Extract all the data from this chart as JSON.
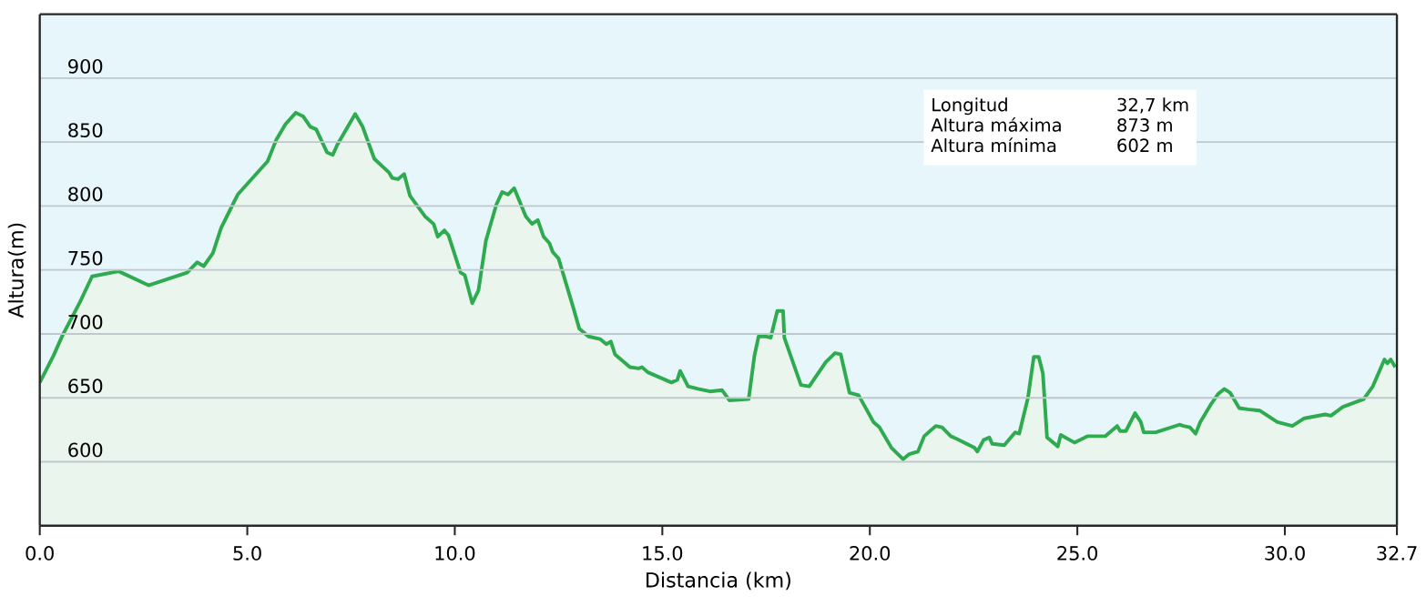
{
  "chart_data": {
    "type": "area",
    "xlabel": "Distancia  (km)",
    "ylabel": "Altura(m)",
    "x": [
      0,
      0.33,
      0.55,
      0.97,
      1.26,
      1.9,
      2.62,
      3.55,
      3.79,
      3.95,
      4.17,
      4.37,
      4.77,
      5.49,
      5.7,
      5.92,
      6.17,
      6.35,
      6.52,
      6.66,
      6.92,
      7.06,
      7.17,
      7.6,
      7.78,
      8.06,
      8.42,
      8.49,
      8.63,
      8.78,
      8.92,
      9.28,
      9.49,
      9.59,
      9.75,
      9.85,
      10.14,
      10.24,
      10.42,
      10.57,
      10.75,
      11.0,
      11.14,
      11.28,
      11.43,
      11.71,
      11.86,
      12.0,
      12.14,
      12.28,
      12.36,
      12.5,
      12.86,
      13.0,
      13.22,
      13.5,
      13.65,
      13.76,
      13.86,
      14.22,
      14.43,
      14.51,
      14.65,
      15.22,
      15.36,
      15.43,
      15.62,
      15.86,
      16.15,
      16.44,
      16.62,
      17.08,
      17.22,
      17.32,
      17.51,
      17.61,
      17.77,
      17.91,
      17.94,
      18.34,
      18.54,
      18.94,
      19.16,
      19.3,
      19.51,
      19.73,
      20.09,
      20.23,
      20.52,
      20.8,
      20.95,
      21.16,
      21.31,
      21.59,
      21.74,
      21.95,
      22.09,
      22.52,
      22.59,
      22.74,
      22.88,
      22.95,
      23.24,
      23.5,
      23.6,
      23.81,
      23.95,
      24.07,
      24.17,
      24.27,
      24.53,
      24.6,
      24.93,
      25.24,
      25.67,
      25.96,
      26.03,
      26.17,
      26.39,
      26.53,
      26.6,
      26.89,
      27.46,
      27.56,
      27.71,
      27.85,
      27.96,
      28.22,
      28.39,
      28.54,
      28.68,
      28.9,
      29.11,
      29.4,
      29.82,
      30.18,
      30.47,
      30.97,
      31.11,
      31.4,
      31.9,
      32.12,
      32.4,
      32.47,
      32.55,
      32.66
    ],
    "series": [
      {
        "color": "#2eaa4f",
        "values": [
          662,
          683,
          699,
          725,
          745,
          749,
          738,
          748,
          756,
          753,
          763,
          783,
          809,
          835,
          852,
          864,
          873,
          870,
          862,
          860,
          842,
          840,
          848,
          872,
          862,
          837,
          826,
          822,
          821,
          825,
          808,
          792,
          786,
          776,
          781,
          777,
          748,
          746,
          724,
          734,
          773,
          801,
          811,
          809,
          814,
          792,
          786,
          789,
          776,
          771,
          764,
          759,
          720,
          704,
          698,
          696,
          692,
          694,
          684,
          674,
          673,
          674,
          670,
          662,
          664,
          671,
          659,
          657,
          655,
          656,
          648,
          649,
          683,
          698,
          698,
          697,
          718,
          718,
          697,
          660,
          659,
          678,
          685,
          684,
          654,
          652,
          631,
          627,
          611,
          602,
          606,
          608,
          620,
          628,
          627,
          620,
          618,
          611,
          608,
          617,
          619,
          614,
          613,
          623,
          622,
          650,
          682,
          682,
          669,
          619,
          612,
          621,
          615,
          620,
          620,
          628,
          624,
          624,
          638,
          631,
          623,
          623,
          629,
          628,
          627,
          622,
          631,
          645,
          653,
          657,
          654,
          642,
          641,
          640,
          631,
          628,
          634,
          637,
          636,
          643,
          649,
          659,
          680,
          677,
          680,
          674
        ]
      }
    ],
    "xlim": [
      0,
      32.7
    ],
    "ylim": [
      550,
      950
    ],
    "xticks": [
      {
        "value": 0,
        "label": "0.0"
      },
      {
        "value": 5,
        "label": "5.0"
      },
      {
        "value": 10,
        "label": "10.0"
      },
      {
        "value": 15,
        "label": "15.0"
      },
      {
        "value": 20,
        "label": "20.0"
      },
      {
        "value": 25,
        "label": "25.0"
      },
      {
        "value": 30,
        "label": "30.0"
      },
      {
        "value": 32.7,
        "label": "32.7"
      }
    ],
    "yticks": [
      600,
      650,
      700,
      750,
      800,
      850,
      900
    ],
    "grid": "y",
    "annotations": [
      "Longitud",
      "32,7 km",
      "Altura máxima",
      "873 m",
      "Altura mínima",
      "602 m"
    ]
  }
}
